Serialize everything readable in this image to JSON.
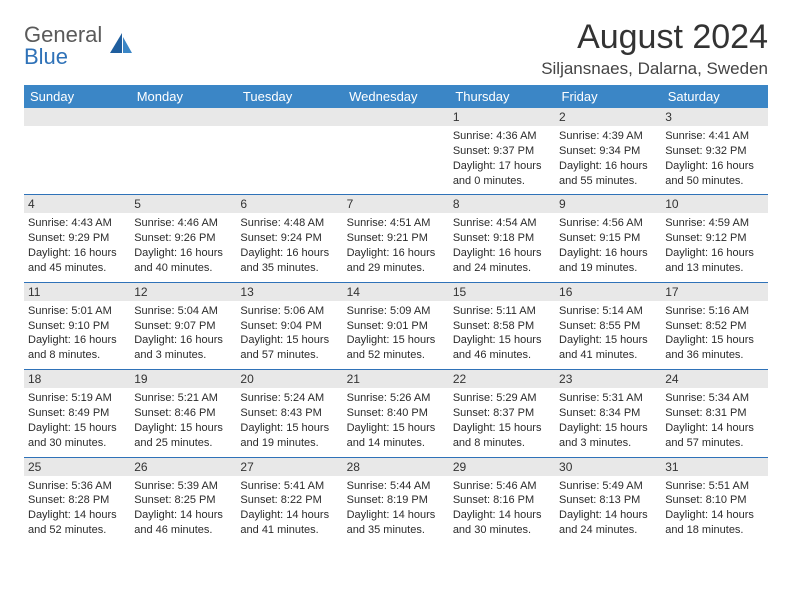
{
  "logo": {
    "general": "General",
    "blue": "Blue"
  },
  "title": "August 2024",
  "location": "Siljansnaes, Dalarna, Sweden",
  "colors": {
    "header_bg": "#3b86c6",
    "header_text": "#ffffff",
    "rule": "#2f72b8",
    "daynum_bg": "#e8e8e8",
    "text": "#2b2b2b",
    "logo_gray": "#5a5a5a",
    "logo_blue": "#2f72b8"
  },
  "weekdays": [
    "Sunday",
    "Monday",
    "Tuesday",
    "Wednesday",
    "Thursday",
    "Friday",
    "Saturday"
  ],
  "weeks": [
    [
      {
        "day": "",
        "sunrise": "",
        "sunset": "",
        "daylight": ""
      },
      {
        "day": "",
        "sunrise": "",
        "sunset": "",
        "daylight": ""
      },
      {
        "day": "",
        "sunrise": "",
        "sunset": "",
        "daylight": ""
      },
      {
        "day": "",
        "sunrise": "",
        "sunset": "",
        "daylight": ""
      },
      {
        "day": "1",
        "sunrise": "Sunrise: 4:36 AM",
        "sunset": "Sunset: 9:37 PM",
        "daylight": "Daylight: 17 hours and 0 minutes."
      },
      {
        "day": "2",
        "sunrise": "Sunrise: 4:39 AM",
        "sunset": "Sunset: 9:34 PM",
        "daylight": "Daylight: 16 hours and 55 minutes."
      },
      {
        "day": "3",
        "sunrise": "Sunrise: 4:41 AM",
        "sunset": "Sunset: 9:32 PM",
        "daylight": "Daylight: 16 hours and 50 minutes."
      }
    ],
    [
      {
        "day": "4",
        "sunrise": "Sunrise: 4:43 AM",
        "sunset": "Sunset: 9:29 PM",
        "daylight": "Daylight: 16 hours and 45 minutes."
      },
      {
        "day": "5",
        "sunrise": "Sunrise: 4:46 AM",
        "sunset": "Sunset: 9:26 PM",
        "daylight": "Daylight: 16 hours and 40 minutes."
      },
      {
        "day": "6",
        "sunrise": "Sunrise: 4:48 AM",
        "sunset": "Sunset: 9:24 PM",
        "daylight": "Daylight: 16 hours and 35 minutes."
      },
      {
        "day": "7",
        "sunrise": "Sunrise: 4:51 AM",
        "sunset": "Sunset: 9:21 PM",
        "daylight": "Daylight: 16 hours and 29 minutes."
      },
      {
        "day": "8",
        "sunrise": "Sunrise: 4:54 AM",
        "sunset": "Sunset: 9:18 PM",
        "daylight": "Daylight: 16 hours and 24 minutes."
      },
      {
        "day": "9",
        "sunrise": "Sunrise: 4:56 AM",
        "sunset": "Sunset: 9:15 PM",
        "daylight": "Daylight: 16 hours and 19 minutes."
      },
      {
        "day": "10",
        "sunrise": "Sunrise: 4:59 AM",
        "sunset": "Sunset: 9:12 PM",
        "daylight": "Daylight: 16 hours and 13 minutes."
      }
    ],
    [
      {
        "day": "11",
        "sunrise": "Sunrise: 5:01 AM",
        "sunset": "Sunset: 9:10 PM",
        "daylight": "Daylight: 16 hours and 8 minutes."
      },
      {
        "day": "12",
        "sunrise": "Sunrise: 5:04 AM",
        "sunset": "Sunset: 9:07 PM",
        "daylight": "Daylight: 16 hours and 3 minutes."
      },
      {
        "day": "13",
        "sunrise": "Sunrise: 5:06 AM",
        "sunset": "Sunset: 9:04 PM",
        "daylight": "Daylight: 15 hours and 57 minutes."
      },
      {
        "day": "14",
        "sunrise": "Sunrise: 5:09 AM",
        "sunset": "Sunset: 9:01 PM",
        "daylight": "Daylight: 15 hours and 52 minutes."
      },
      {
        "day": "15",
        "sunrise": "Sunrise: 5:11 AM",
        "sunset": "Sunset: 8:58 PM",
        "daylight": "Daylight: 15 hours and 46 minutes."
      },
      {
        "day": "16",
        "sunrise": "Sunrise: 5:14 AM",
        "sunset": "Sunset: 8:55 PM",
        "daylight": "Daylight: 15 hours and 41 minutes."
      },
      {
        "day": "17",
        "sunrise": "Sunrise: 5:16 AM",
        "sunset": "Sunset: 8:52 PM",
        "daylight": "Daylight: 15 hours and 36 minutes."
      }
    ],
    [
      {
        "day": "18",
        "sunrise": "Sunrise: 5:19 AM",
        "sunset": "Sunset: 8:49 PM",
        "daylight": "Daylight: 15 hours and 30 minutes."
      },
      {
        "day": "19",
        "sunrise": "Sunrise: 5:21 AM",
        "sunset": "Sunset: 8:46 PM",
        "daylight": "Daylight: 15 hours and 25 minutes."
      },
      {
        "day": "20",
        "sunrise": "Sunrise: 5:24 AM",
        "sunset": "Sunset: 8:43 PM",
        "daylight": "Daylight: 15 hours and 19 minutes."
      },
      {
        "day": "21",
        "sunrise": "Sunrise: 5:26 AM",
        "sunset": "Sunset: 8:40 PM",
        "daylight": "Daylight: 15 hours and 14 minutes."
      },
      {
        "day": "22",
        "sunrise": "Sunrise: 5:29 AM",
        "sunset": "Sunset: 8:37 PM",
        "daylight": "Daylight: 15 hours and 8 minutes."
      },
      {
        "day": "23",
        "sunrise": "Sunrise: 5:31 AM",
        "sunset": "Sunset: 8:34 PM",
        "daylight": "Daylight: 15 hours and 3 minutes."
      },
      {
        "day": "24",
        "sunrise": "Sunrise: 5:34 AM",
        "sunset": "Sunset: 8:31 PM",
        "daylight": "Daylight: 14 hours and 57 minutes."
      }
    ],
    [
      {
        "day": "25",
        "sunrise": "Sunrise: 5:36 AM",
        "sunset": "Sunset: 8:28 PM",
        "daylight": "Daylight: 14 hours and 52 minutes."
      },
      {
        "day": "26",
        "sunrise": "Sunrise: 5:39 AM",
        "sunset": "Sunset: 8:25 PM",
        "daylight": "Daylight: 14 hours and 46 minutes."
      },
      {
        "day": "27",
        "sunrise": "Sunrise: 5:41 AM",
        "sunset": "Sunset: 8:22 PM",
        "daylight": "Daylight: 14 hours and 41 minutes."
      },
      {
        "day": "28",
        "sunrise": "Sunrise: 5:44 AM",
        "sunset": "Sunset: 8:19 PM",
        "daylight": "Daylight: 14 hours and 35 minutes."
      },
      {
        "day": "29",
        "sunrise": "Sunrise: 5:46 AM",
        "sunset": "Sunset: 8:16 PM",
        "daylight": "Daylight: 14 hours and 30 minutes."
      },
      {
        "day": "30",
        "sunrise": "Sunrise: 5:49 AM",
        "sunset": "Sunset: 8:13 PM",
        "daylight": "Daylight: 14 hours and 24 minutes."
      },
      {
        "day": "31",
        "sunrise": "Sunrise: 5:51 AM",
        "sunset": "Sunset: 8:10 PM",
        "daylight": "Daylight: 14 hours and 18 minutes."
      }
    ]
  ]
}
